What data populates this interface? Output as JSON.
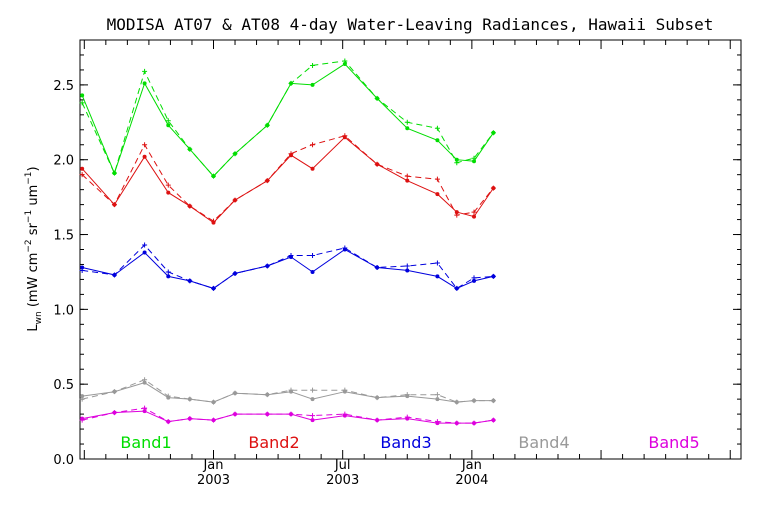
{
  "chart_data": {
    "type": "line",
    "title": "MODISA AT07 & AT08 4-day Water-Leaving Radiances, Hawaii Subset",
    "ylabel": "L_wn (mW cm^-2 sr^-1 um^-1)",
    "ylabel_main": "L",
    "ylabel_sub": "wn",
    "ylabel_rest": "(mW cm",
    "ylabel_sup1": "−2",
    "ylabel_mid": "sr",
    "ylabel_sup2": "−1",
    "ylabel_end": "um",
    "ylabel_sup3": "−1",
    "ylabel_close": ")",
    "ylim": [
      0.0,
      2.8
    ],
    "xlim_month": [
      -6.2,
      24.5
    ],
    "y_ticks": [
      0.0,
      0.5,
      1.0,
      1.5,
      2.0,
      2.5
    ],
    "y_tick_labels": [
      "0.0",
      "0.5",
      "1.0",
      "1.5",
      "2.0",
      "2.5"
    ],
    "x_ticks": [
      {
        "month": 0,
        "label1": "Jan",
        "label2": "2003"
      },
      {
        "month": 6,
        "label1": "Jul",
        "label2": "2003"
      },
      {
        "month": 12,
        "label1": "Jan",
        "label2": "2004"
      }
    ],
    "x_unit": "month offset from Jan 2003",
    "grid": false,
    "series": [
      {
        "name": "Band1",
        "color": "#00dd00",
        "x": [
          -6.1,
          -4.6,
          -3.2,
          -2.1,
          -1.1,
          0.0,
          1.0,
          2.5,
          3.6,
          4.6,
          6.1,
          7.6,
          9.0,
          10.4,
          11.3,
          12.1,
          13.0
        ],
        "solid": [
          2.43,
          1.91,
          2.51,
          2.23,
          2.07,
          1.89,
          2.04,
          2.23,
          2.51,
          2.5,
          2.64,
          2.41,
          2.21,
          2.13,
          2.0,
          1.99,
          2.18
        ],
        "dashed": [
          2.38,
          1.91,
          2.59,
          2.26,
          2.07,
          1.89,
          2.04,
          2.23,
          2.51,
          2.63,
          2.66,
          2.41,
          2.25,
          2.21,
          1.98,
          2.01,
          2.18
        ]
      },
      {
        "name": "Band2",
        "color": "#dd1111",
        "x": [
          -6.1,
          -4.6,
          -3.2,
          -2.1,
          -1.1,
          0.0,
          1.0,
          2.5,
          3.6,
          4.6,
          6.1,
          7.6,
          9.0,
          10.4,
          11.3,
          12.1,
          13.0
        ],
        "solid": [
          1.94,
          1.7,
          2.02,
          1.78,
          1.69,
          1.58,
          1.73,
          1.86,
          2.03,
          1.94,
          2.15,
          1.97,
          1.86,
          1.77,
          1.65,
          1.62,
          1.81
        ],
        "dashed": [
          1.9,
          1.7,
          2.1,
          1.83,
          1.69,
          1.59,
          1.73,
          1.86,
          2.04,
          2.1,
          2.16,
          1.97,
          1.89,
          1.87,
          1.63,
          1.65,
          1.81
        ]
      },
      {
        "name": "Band3",
        "color": "#0000dd",
        "x": [
          -6.1,
          -4.6,
          -3.2,
          -2.1,
          -1.1,
          0.0,
          1.0,
          2.5,
          3.6,
          4.6,
          6.1,
          7.6,
          9.0,
          10.4,
          11.3,
          12.1,
          13.0
        ],
        "solid": [
          1.28,
          1.23,
          1.38,
          1.22,
          1.19,
          1.14,
          1.24,
          1.29,
          1.35,
          1.25,
          1.4,
          1.28,
          1.26,
          1.22,
          1.14,
          1.19,
          1.22
        ],
        "dashed": [
          1.26,
          1.23,
          1.43,
          1.25,
          1.19,
          1.14,
          1.24,
          1.29,
          1.36,
          1.36,
          1.41,
          1.28,
          1.29,
          1.31,
          1.14,
          1.21,
          1.22
        ]
      },
      {
        "name": "Band4",
        "color": "#999999",
        "x": [
          -6.1,
          -4.6,
          -3.2,
          -2.1,
          -1.1,
          0.0,
          1.0,
          2.5,
          3.6,
          4.6,
          6.1,
          7.6,
          9.0,
          10.4,
          11.3,
          12.1,
          13.0
        ],
        "solid": [
          0.42,
          0.45,
          0.51,
          0.41,
          0.4,
          0.38,
          0.44,
          0.43,
          0.45,
          0.4,
          0.45,
          0.41,
          0.42,
          0.4,
          0.38,
          0.39,
          0.39
        ],
        "dashed": [
          0.4,
          0.45,
          0.53,
          0.42,
          0.4,
          0.38,
          0.44,
          0.43,
          0.46,
          0.46,
          0.46,
          0.41,
          0.43,
          0.43,
          0.38,
          0.39,
          0.39
        ]
      },
      {
        "name": "Band5",
        "color": "#dd00dd",
        "x": [
          -6.1,
          -4.6,
          -3.2,
          -2.1,
          -1.1,
          0.0,
          1.0,
          2.5,
          3.6,
          4.6,
          6.1,
          7.6,
          9.0,
          10.4,
          11.3,
          12.1,
          13.0
        ],
        "solid": [
          0.27,
          0.31,
          0.32,
          0.25,
          0.27,
          0.26,
          0.3,
          0.3,
          0.3,
          0.26,
          0.29,
          0.26,
          0.27,
          0.24,
          0.24,
          0.24,
          0.26
        ],
        "dashed": [
          0.26,
          0.31,
          0.34,
          0.25,
          0.27,
          0.26,
          0.3,
          0.3,
          0.3,
          0.29,
          0.3,
          0.26,
          0.28,
          0.25,
          0.24,
          0.24,
          0.26
        ]
      }
    ]
  }
}
